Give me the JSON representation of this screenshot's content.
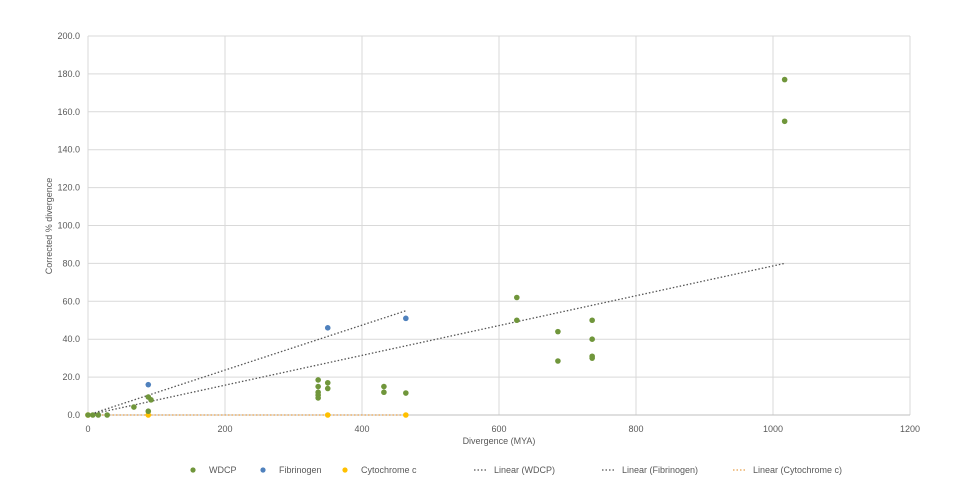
{
  "chart_data": {
    "type": "scatter",
    "title": "",
    "xlabel": "Divergence (MYA)",
    "ylabel": "Corrected % divergence",
    "xlim": [
      0,
      1200
    ],
    "ylim": [
      0,
      200
    ],
    "xticks": [
      "0",
      "200",
      "400",
      "600",
      "800",
      "1000",
      "1200"
    ],
    "yticks": [
      "0.0",
      "20.0",
      "40.0",
      "60.0",
      "80.0",
      "100.0",
      "120.0",
      "140.0",
      "160.0",
      "180.0",
      "200.0"
    ],
    "grid": true,
    "legend_position": "bottom",
    "series": [
      {
        "name": "WDCP",
        "color": "#70963b",
        "points": [
          [
            0,
            0
          ],
          [
            7,
            0
          ],
          [
            15,
            0
          ],
          [
            28,
            0
          ],
          [
            67,
            4.2
          ],
          [
            88,
            9.5
          ],
          [
            92,
            8
          ],
          [
            88,
            2
          ],
          [
            336,
            18.5
          ],
          [
            336,
            15
          ],
          [
            336,
            12
          ],
          [
            336,
            10.5
          ],
          [
            336,
            9
          ],
          [
            350,
            17
          ],
          [
            350,
            14
          ],
          [
            432,
            15
          ],
          [
            432,
            12
          ],
          [
            464,
            11.6
          ],
          [
            626,
            62
          ],
          [
            626,
            50
          ],
          [
            686,
            44
          ],
          [
            686,
            28.5
          ],
          [
            736,
            50
          ],
          [
            736,
            40
          ],
          [
            736,
            31
          ],
          [
            736,
            30
          ],
          [
            1017,
            177
          ],
          [
            1017,
            155
          ]
        ]
      },
      {
        "name": "Fibrinogen",
        "color": "#4f81bd",
        "points": [
          [
            88,
            16
          ],
          [
            350,
            46
          ],
          [
            464,
            51
          ]
        ]
      },
      {
        "name": "Cytochrome c",
        "color": "#ffc000",
        "points": [
          [
            0,
            0
          ],
          [
            88,
            0
          ],
          [
            350,
            0
          ],
          [
            464,
            0
          ]
        ]
      }
    ],
    "trendlines": [
      {
        "name": "Linear (WDCP)",
        "color": "#70963b",
        "from": [
          0,
          0
        ],
        "to": [
          1017,
          80
        ]
      },
      {
        "name": "Linear (Fibrinogen)",
        "color": "#4f81bd",
        "from": [
          0,
          0
        ],
        "to": [
          464,
          55
        ]
      },
      {
        "name": "Linear (Cytochrome c)",
        "color": "#ffc000",
        "from": [
          0,
          0
        ],
        "to": [
          464,
          0
        ]
      }
    ]
  }
}
